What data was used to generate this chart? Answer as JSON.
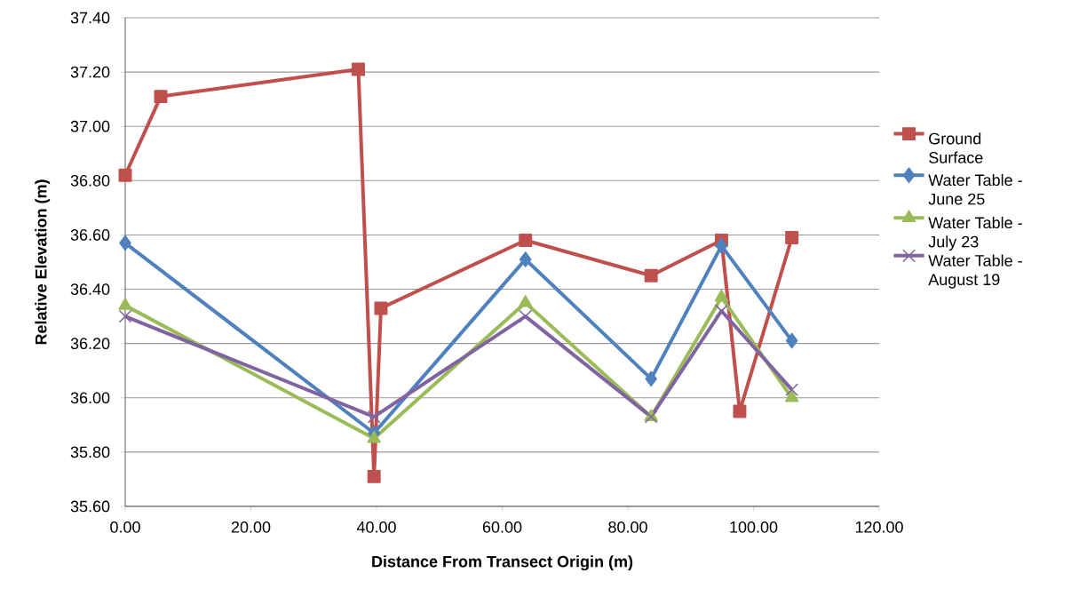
{
  "chart_data": {
    "type": "line",
    "xlabel": "Distance From Transect Origin (m)",
    "ylabel": "Relative Elevation (m)",
    "series": [
      {
        "name": "Ground Surface",
        "color": "#c0504d",
        "marker": "square",
        "x": [
          0,
          5.65,
          37.1,
          39.6,
          40.7,
          63.7,
          83.7,
          94.9,
          97.8,
          106.1
        ],
        "values": [
          36.82,
          37.11,
          37.21,
          35.71,
          36.33,
          36.58,
          36.45,
          36.58,
          35.95,
          36.59
        ]
      },
      {
        "name": "Water Table - June 25",
        "color": "#4f81bd",
        "marker": "diamond",
        "x": [
          0,
          39.6,
          63.7,
          83.7,
          94.9,
          106.1
        ],
        "values": [
          36.57,
          35.87,
          36.51,
          36.07,
          36.56,
          36.21
        ]
      },
      {
        "name": "Water Table - July 23",
        "color": "#9bbb59",
        "marker": "triangle",
        "x": [
          0,
          39.6,
          63.7,
          83.7,
          94.9,
          106.1
        ],
        "values": [
          36.34,
          35.85,
          36.35,
          35.93,
          36.37,
          36.0
        ]
      },
      {
        "name": "Water Table - August 19",
        "color": "#8064a2",
        "marker": "cross",
        "x": [
          0,
          39.6,
          63.7,
          83.7,
          94.9,
          106.1
        ],
        "values": [
          36.3,
          35.93,
          36.3,
          35.93,
          36.32,
          36.03
        ]
      }
    ],
    "xlim": [
      0,
      120
    ],
    "xticks": [
      {
        "value": 0,
        "label": "0.00"
      },
      {
        "value": 20,
        "label": "20.00"
      },
      {
        "value": 40,
        "label": "40.00"
      },
      {
        "value": 60,
        "label": "60.00"
      },
      {
        "value": 80,
        "label": "80.00"
      },
      {
        "value": 100,
        "label": "100.00"
      },
      {
        "value": 120,
        "label": "120.00"
      }
    ],
    "ylim": [
      35.6,
      37.4
    ],
    "yticks": [
      {
        "value": 35.6,
        "label": "35.60"
      },
      {
        "value": 35.8,
        "label": "35.80"
      },
      {
        "value": 36.0,
        "label": "36.00"
      },
      {
        "value": 36.2,
        "label": "36.20"
      },
      {
        "value": 36.4,
        "label": "36.40"
      },
      {
        "value": 36.6,
        "label": "36.60"
      },
      {
        "value": 36.8,
        "label": "36.80"
      },
      {
        "value": 37.0,
        "label": "37.00"
      },
      {
        "value": 37.2,
        "label": "37.20"
      },
      {
        "value": 37.4,
        "label": "37.40"
      }
    ],
    "grid": "y",
    "legend": "right",
    "line_style": "solid"
  }
}
